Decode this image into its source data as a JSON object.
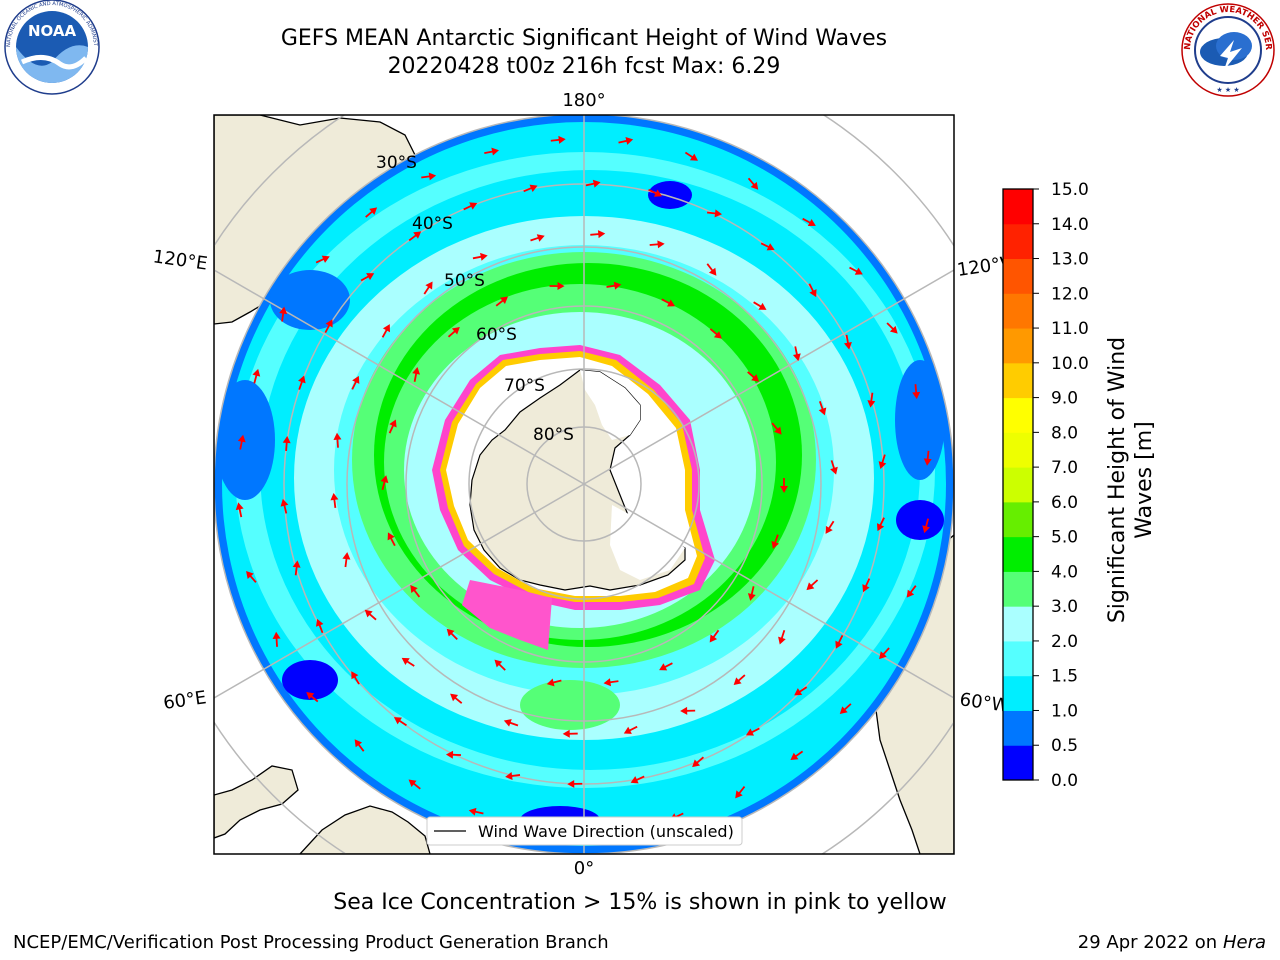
{
  "header": {
    "title_line1": "GEFS MEAN Antarctic Significant Height of Wind Waves",
    "title_line2": "20220428 t00z 216h fcst   Max: 6.29"
  },
  "logos": {
    "left": {
      "name": "noaa-logo",
      "text": "NOAA",
      "ring_text": "NATIONAL OCEANIC AND ATMOSPHERIC ADMINISTRATION · U.S. DEPARTMENT OF COMMERCE"
    },
    "right": {
      "name": "nws-logo",
      "ring_text": "NATIONAL WEATHER SERVICE"
    }
  },
  "map": {
    "projection": "south-polar-stereographic",
    "lon_labels": {
      "top": "180°",
      "bottom": "0°",
      "left_upper": "120°E",
      "left_lower": "60°E",
      "right_upper": "120°W",
      "right_lower": "60°W"
    },
    "lat_labels": [
      "30°S",
      "40°S",
      "50°S",
      "60°S",
      "70°S",
      "80°S"
    ],
    "legend_label": "Wind Wave Direction (unscaled)",
    "colors": {
      "land": "#efebd9",
      "ice": "#ffffff",
      "ice_edge": [
        "#ff33cc",
        "#ffcc00"
      ],
      "grid": "#b8b8b8",
      "arrow": "#ff0000"
    }
  },
  "colorbar": {
    "label": "Significant Height of Wind Waves [m]",
    "label_line1": "Significant Height of Wind",
    "label_line2": "Waves [m]",
    "ticks": [
      "0.0",
      "0.5",
      "1.0",
      "1.5",
      "2.0",
      "3.0",
      "4.0",
      "5.0",
      "6.0",
      "7.0",
      "8.0",
      "9.0",
      "10.0",
      "11.0",
      "12.0",
      "13.0",
      "14.0",
      "15.0"
    ],
    "colors": [
      "#0000ff",
      "#0077ff",
      "#00eeff",
      "#55ffff",
      "#aaffff",
      "#55ff77",
      "#00ee00",
      "#66ee00",
      "#ccff00",
      "#eeff00",
      "#ffff00",
      "#ffcc00",
      "#ff9900",
      "#ff7700",
      "#ff5500",
      "#ff2200",
      "#ff0000"
    ]
  },
  "caption": "Sea Ice Concentration > 15% is shown in pink to yellow",
  "footer": {
    "left": "NCEP/EMC/Verification Post Processing Product Generation Branch",
    "right_prefix": "29 Apr 2022 on ",
    "right_host": "Hera"
  }
}
